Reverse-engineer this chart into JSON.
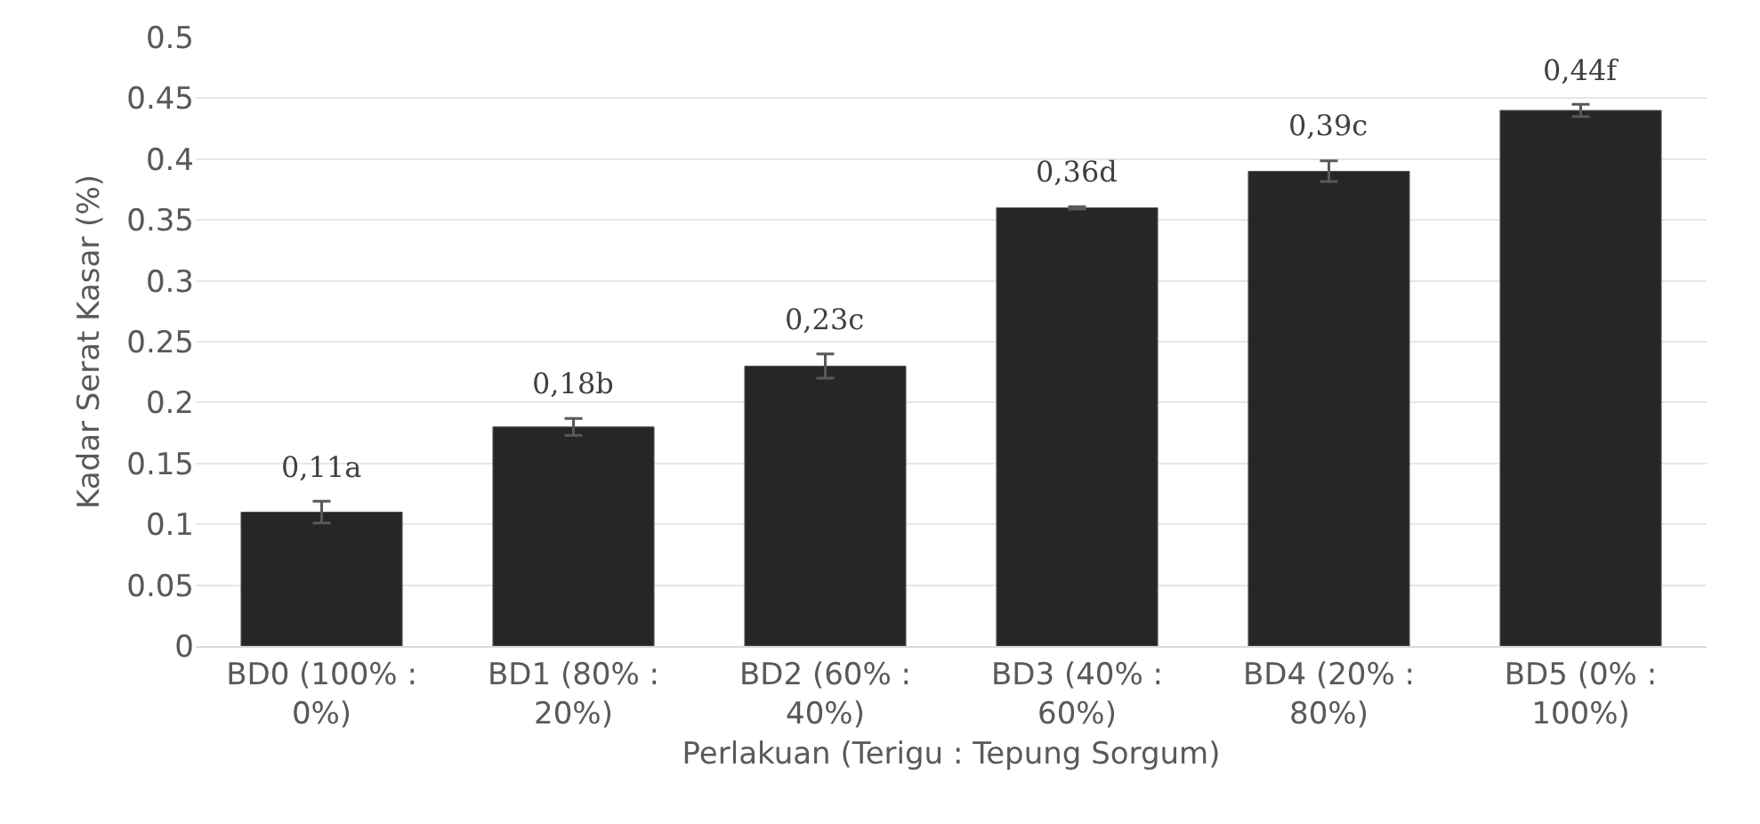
{
  "chart_data": {
    "type": "bar",
    "xlabel": "Perlakuan (Terigu : Tepung Sorgum)",
    "ylabel": "Kadar Serat Kasar (%)",
    "categories": [
      "BD0 (100% : 0%)",
      "BD1 (80% : 20%)",
      "BD2 (60% : 40%)",
      "BD3 (40% : 60%)",
      "BD4 (20% : 80%)",
      "BD5 (0% : 100%)"
    ],
    "values": [
      0.11,
      0.18,
      0.23,
      0.36,
      0.39,
      0.44
    ],
    "errors": [
      0.009,
      0.007,
      0.01,
      0.001,
      0.0085,
      0.005
    ],
    "value_labels": [
      "0,11a",
      "0,18b",
      "0,23c",
      "0,36d",
      "0,39c",
      "0,44f"
    ],
    "color": "#262626",
    "ylim": [
      0,
      0.5
    ],
    "yticks": [
      0,
      0.05,
      0.1,
      0.15,
      0.2,
      0.25,
      0.3,
      0.35,
      0.4,
      0.45,
      0.5
    ],
    "grid": "y"
  }
}
